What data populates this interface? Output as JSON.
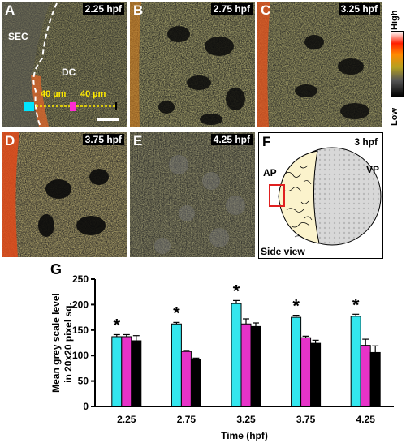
{
  "panels": {
    "A": {
      "letter": "A",
      "time": "2.25 hpf",
      "sec": "SEC",
      "dc": "DC",
      "m1": "40 µm",
      "m2": "40 µm"
    },
    "B": {
      "letter": "B",
      "time": "2.75 hpf"
    },
    "C": {
      "letter": "C",
      "time": "3.25 hpf"
    },
    "D": {
      "letter": "D",
      "time": "3.75 hpf"
    },
    "E": {
      "letter": "E",
      "time": "4.25 hpf"
    },
    "F": {
      "letter": "F",
      "time": "3 hpf",
      "ap": "AP",
      "vp": "VP",
      "view": "Side view"
    },
    "G": {
      "letter": "G"
    }
  },
  "colorbar": {
    "high": "High",
    "low": "Low"
  },
  "chart_data": {
    "type": "bar",
    "title": "",
    "xlabel": "Time (hpf)",
    "ylabel": "Mean grey scale level in 20x20 pixel sq.",
    "ylabel_line1": "Mean grey scale level",
    "ylabel_line2": "in 20x20 pixel sq.",
    "ylim": [
      0,
      250
    ],
    "yticks": [
      "0",
      "50",
      "100",
      "150",
      "200",
      "250"
    ],
    "categories": [
      "2.25",
      "2.75",
      "3.25",
      "3.75",
      "4.25"
    ],
    "series": [
      {
        "color": "#33e6ee",
        "values": [
          137,
          162,
          202,
          175,
          177
        ],
        "errors": [
          4,
          3,
          6,
          4,
          4
        ]
      },
      {
        "color": "#e633c8",
        "values": [
          137,
          108,
          162,
          135,
          120
        ],
        "errors": [
          4,
          2,
          10,
          3,
          12
        ]
      },
      {
        "color": "#000000",
        "values": [
          129,
          92,
          157,
          124,
          106
        ],
        "errors": [
          10,
          3,
          7,
          6,
          13
        ]
      }
    ],
    "significance": [
      "*",
      "*",
      "*",
      "*",
      "*"
    ]
  }
}
